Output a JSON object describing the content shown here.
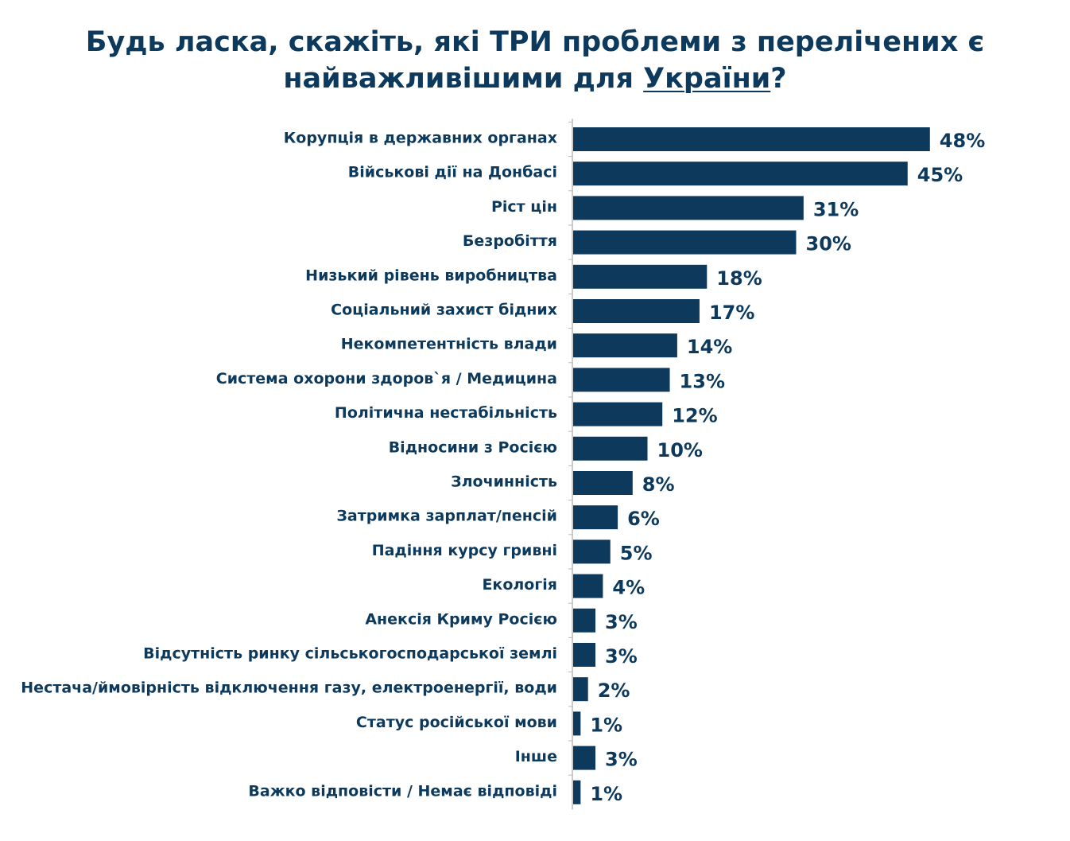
{
  "title": {
    "line1": "Будь ласка, скажіть, які ТРИ проблеми з перелічених є",
    "line2_before": "найважливішими для ",
    "line2_underlined": "України",
    "line2_after": "?"
  },
  "colors": {
    "bar": "#0d3a5c",
    "text": "#0d3a5c",
    "axis": "#b8b8b8"
  },
  "chart_data": {
    "type": "bar",
    "orientation": "horizontal",
    "title": "Будь ласка, скажіть, які ТРИ проблеми з перелічених є найважливішими для України?",
    "xlabel": "",
    "ylabel": "",
    "grid": false,
    "unit": "%",
    "categories": [
      "Корупція в державних органах",
      "Військові дії на Донбасі",
      "Ріст цін",
      "Безробіття",
      "Низький рівень виробництва",
      "Соціальний захист бідних",
      "Некомпетентність влади",
      "Система охорони здоров`я / Медицина",
      "Політична нестабільність",
      "Відносини з Росією",
      "Злочинність",
      "Затримка зарплат/пенсій",
      "Падіння курсу гривні",
      "Екологія",
      "Анексія Криму Росією",
      "Відсутність ринку сільськогосподарської землі",
      "Нестача/ймовірність відключення газу, електроенергії, води",
      "Статус російської мови",
      "Інше",
      "Важко відповісти / Немає відповіді"
    ],
    "values": [
      48,
      45,
      31,
      30,
      18,
      17,
      14,
      13,
      12,
      10,
      8,
      6,
      5,
      4,
      3,
      3,
      2,
      1,
      3,
      1
    ],
    "value_labels": [
      "48%",
      "45%",
      "31%",
      "30%",
      "18%",
      "17%",
      "14%",
      "13%",
      "12%",
      "10%",
      "8%",
      "6%",
      "5%",
      "4%",
      "3%",
      "3%",
      "2%",
      "1%",
      "3%",
      "1%"
    ]
  }
}
